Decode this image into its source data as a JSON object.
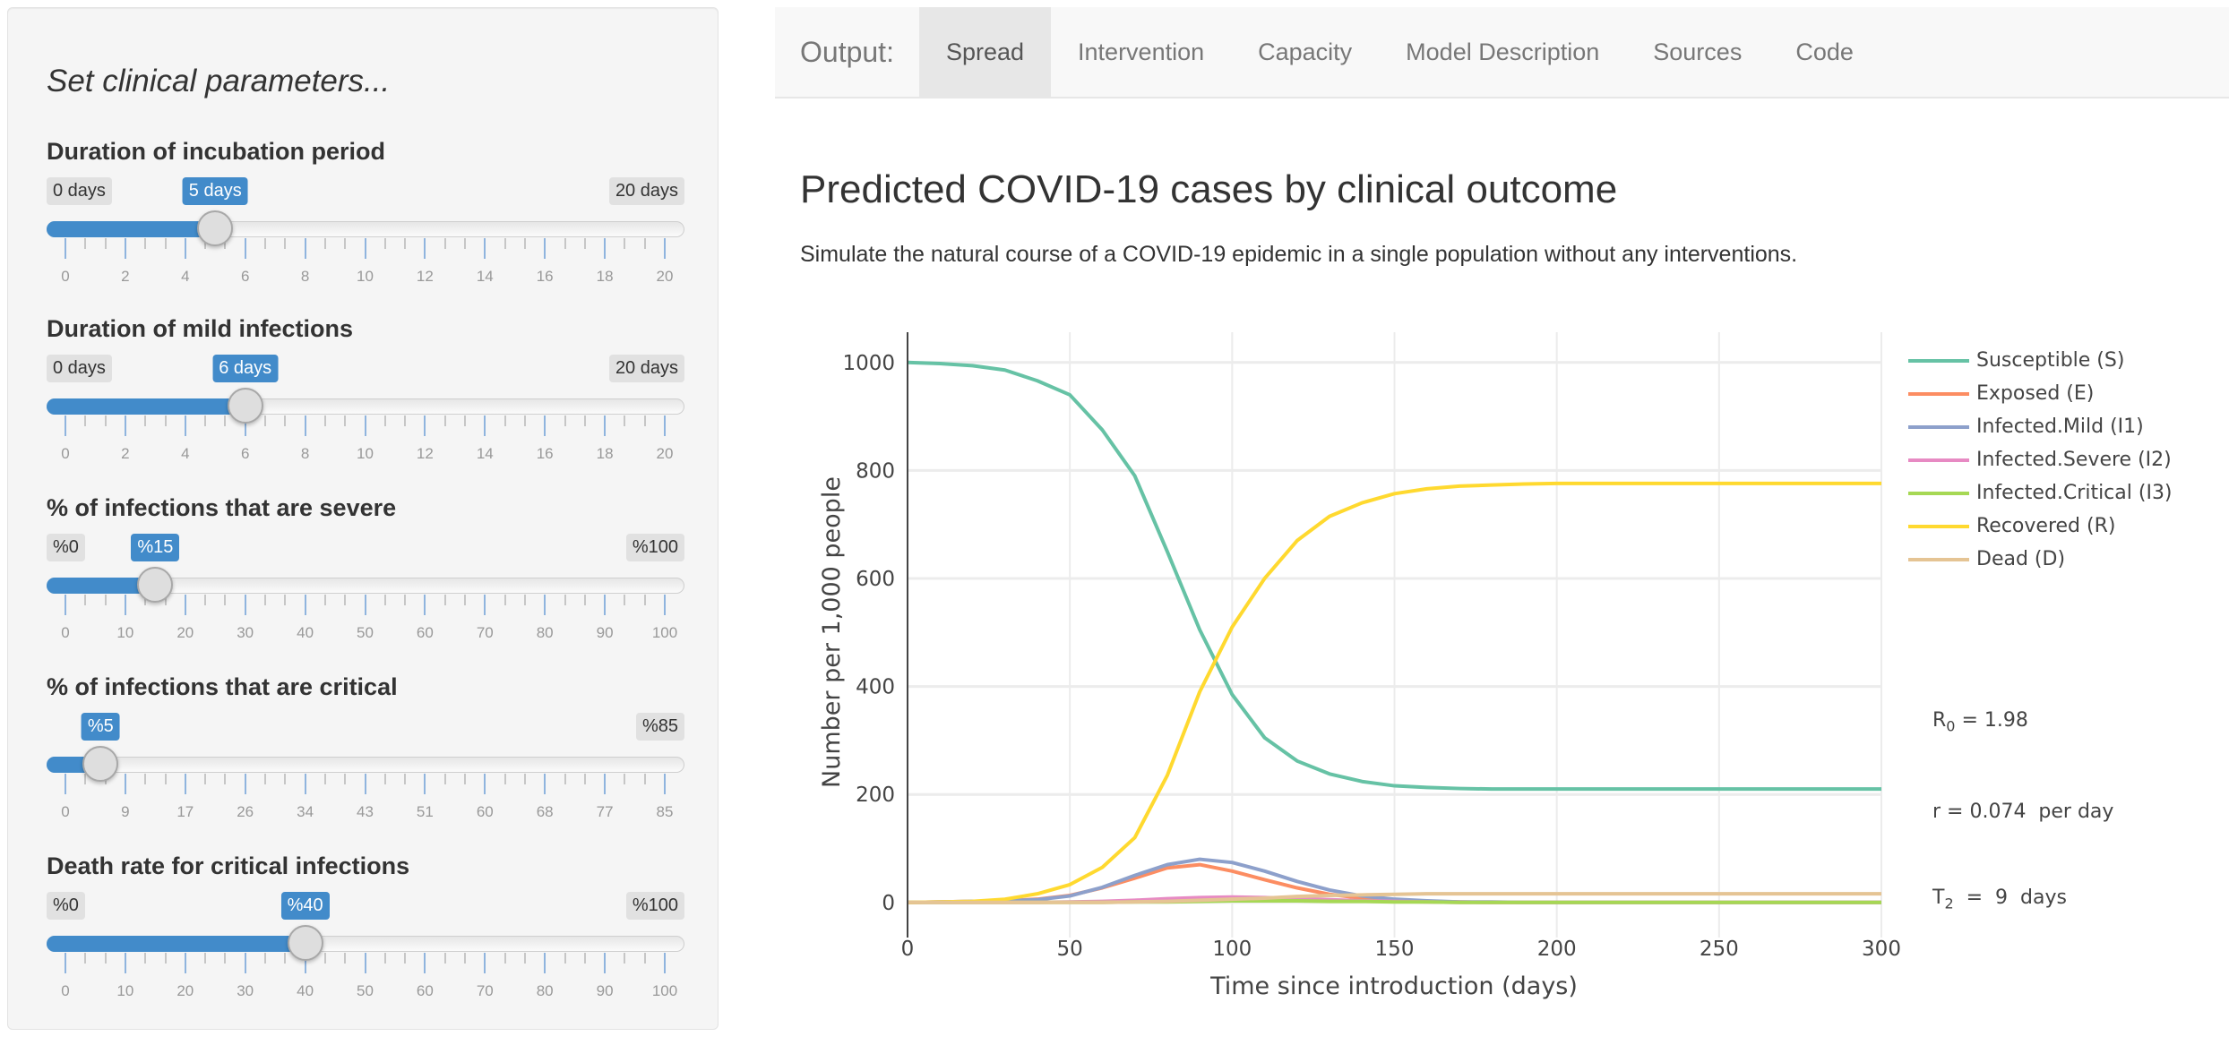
{
  "sidebar": {
    "heading": "Set clinical parameters...",
    "sliders": [
      {
        "label": "Duration of incubation period",
        "min": 0,
        "max": 20,
        "value": 5,
        "min_label": "0 days",
        "max_label": "20 days",
        "value_label": "5 days",
        "show_min": true,
        "ticks": [
          "0",
          "2",
          "4",
          "6",
          "8",
          "10",
          "12",
          "14",
          "16",
          "18",
          "20"
        ]
      },
      {
        "label": "Duration of mild infections",
        "min": 0,
        "max": 20,
        "value": 6,
        "min_label": "0 days",
        "max_label": "20 days",
        "value_label": "6 days",
        "show_min": true,
        "ticks": [
          "0",
          "2",
          "4",
          "6",
          "8",
          "10",
          "12",
          "14",
          "16",
          "18",
          "20"
        ]
      },
      {
        "label": "% of infections that are severe",
        "min": 0,
        "max": 100,
        "value": 15,
        "min_label": "%0",
        "max_label": "%100",
        "value_label": "%15",
        "show_min": true,
        "ticks": [
          "0",
          "10",
          "20",
          "30",
          "40",
          "50",
          "60",
          "70",
          "80",
          "90",
          "100"
        ]
      },
      {
        "label": "% of infections that are critical",
        "min": 0,
        "max": 85,
        "value": 5,
        "max_label": "%85",
        "value_label": "%5",
        "show_min": false,
        "ticks": [
          "0",
          "9",
          "17",
          "26",
          "34",
          "43",
          "51",
          "60",
          "68",
          "77",
          "85"
        ]
      },
      {
        "label": "Death rate for critical infections",
        "min": 0,
        "max": 100,
        "value": 40,
        "min_label": "%0",
        "max_label": "%100",
        "value_label": "%40",
        "show_min": true,
        "ticks": [
          "0",
          "10",
          "20",
          "30",
          "40",
          "50",
          "60",
          "70",
          "80",
          "90",
          "100"
        ]
      }
    ]
  },
  "nav": {
    "brand": "Output:",
    "tabs": [
      {
        "label": "Spread",
        "active": true
      },
      {
        "label": "Intervention",
        "active": false
      },
      {
        "label": "Capacity",
        "active": false
      },
      {
        "label": "Model Description",
        "active": false
      },
      {
        "label": "Sources",
        "active": false
      },
      {
        "label": "Code",
        "active": false
      }
    ]
  },
  "main": {
    "title": "Predicted COVID-19 cases by clinical outcome",
    "subtitle": "Simulate the natural course of a COVID-19 epidemic in a single population without any interventions."
  },
  "chart_data": {
    "type": "line",
    "xlabel": "Time since introduction (days)",
    "ylabel": "Number per 1,000 people",
    "xlim": [
      0,
      300
    ],
    "ylim": [
      -65,
      1056
    ],
    "xticks": [
      0,
      50,
      100,
      150,
      200,
      250,
      300
    ],
    "yticks": [
      0,
      200,
      400,
      600,
      800,
      1000
    ],
    "grid": true,
    "legend_position": "right",
    "x": [
      0,
      10,
      20,
      30,
      40,
      50,
      60,
      70,
      80,
      90,
      100,
      110,
      120,
      130,
      140,
      150,
      160,
      170,
      180,
      190,
      200,
      210,
      220,
      230,
      240,
      250,
      260,
      270,
      280,
      290,
      300
    ],
    "series": [
      {
        "name": "Susceptible (S)",
        "color": "#66c2a5",
        "values": [
          1000,
          998,
          994,
          986,
          966,
          940,
          875,
          790,
          650,
          505,
          385,
          305,
          262,
          238,
          224,
          216,
          213,
          211,
          210,
          210,
          210,
          210,
          210,
          210,
          210,
          210,
          210,
          210,
          210,
          210,
          210
        ]
      },
      {
        "name": "Exposed (E)",
        "color": "#fc8d62",
        "values": [
          0,
          1,
          2,
          3,
          6,
          13,
          27,
          45,
          64,
          70,
          58,
          42,
          27,
          15,
          8,
          4,
          2,
          1,
          0,
          0,
          0,
          0,
          0,
          0,
          0,
          0,
          0,
          0,
          0,
          0,
          0
        ]
      },
      {
        "name": "Infected.Mild (I1)",
        "color": "#8da0cb",
        "values": [
          0,
          1,
          2,
          3,
          5,
          12,
          28,
          50,
          70,
          80,
          74,
          58,
          39,
          23,
          12,
          6,
          3,
          1,
          1,
          0,
          0,
          0,
          0,
          0,
          0,
          0,
          0,
          0,
          0,
          0,
          0
        ]
      },
      {
        "name": "Infected.Severe (I2)",
        "color": "#e78ac3",
        "values": [
          0,
          0,
          0,
          0,
          0,
          1,
          2,
          4,
          7,
          9,
          10,
          9,
          7,
          5,
          3,
          2,
          1,
          0,
          0,
          0,
          0,
          0,
          0,
          0,
          0,
          0,
          0,
          0,
          0,
          0,
          0
        ]
      },
      {
        "name": "Infected.Critical (I3)",
        "color": "#a6d854",
        "values": [
          0,
          0,
          0,
          0,
          0,
          0,
          0,
          1,
          1,
          2,
          3,
          3,
          3,
          2,
          2,
          1,
          1,
          0,
          0,
          0,
          0,
          0,
          0,
          0,
          0,
          0,
          0,
          0,
          0,
          0,
          0
        ]
      },
      {
        "name": "Recovered (R)",
        "color": "#ffd92f",
        "values": [
          0,
          1,
          2,
          6,
          16,
          33,
          65,
          120,
          235,
          390,
          510,
          600,
          670,
          715,
          740,
          757,
          766,
          771,
          773,
          775,
          776,
          776,
          776,
          776,
          776,
          776,
          776,
          776,
          776,
          776,
          776
        ]
      },
      {
        "name": "Dead (D)",
        "color": "#e5c494",
        "values": [
          0,
          0,
          0,
          0,
          0,
          0,
          0,
          1,
          2,
          4,
          6,
          8,
          11,
          13,
          14,
          15,
          16,
          16,
          16,
          16,
          16,
          16,
          16,
          16,
          16,
          16,
          16,
          16,
          16,
          16,
          16
        ]
      }
    ],
    "annotation": [
      {
        "main": "R",
        "sub": "0",
        "rest": " = 1.98"
      },
      {
        "main": "r = 0.074  per day",
        "sub": "",
        "rest": ""
      },
      {
        "main": "T",
        "sub": "2",
        "rest": "  =  9  days"
      }
    ]
  }
}
